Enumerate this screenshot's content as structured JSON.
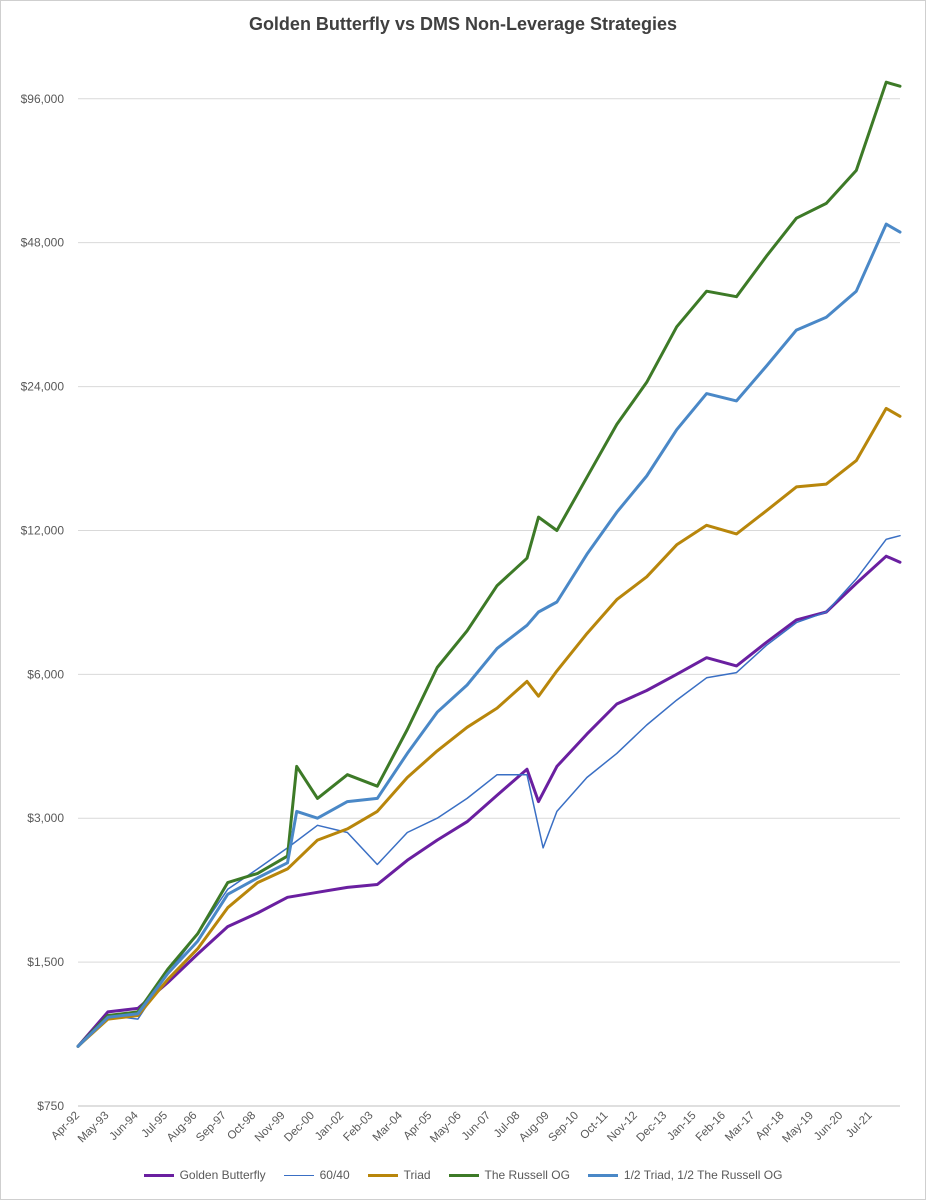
{
  "chart_data": {
    "type": "line",
    "title": "Golden Butterfly vs  DMS Non-Leverage Strategies",
    "xlabel": "",
    "ylabel": "",
    "y_scale": "log2",
    "ylim": [
      750,
      125000
    ],
    "y_ticks": [
      750,
      1500,
      3000,
      6000,
      12000,
      24000,
      48000,
      96000
    ],
    "y_tick_labels": [
      "$750",
      "$1,500",
      "$3,000",
      "$6,000",
      "$12,000",
      "$24,000",
      "$48,000",
      "$96,000"
    ],
    "x_range": [
      "1992-04",
      "2022-01"
    ],
    "x_tick_labels": [
      "Apr-92",
      "May-93",
      "Jun-94",
      "Jul-95",
      "Aug-96",
      "Sep-97",
      "Oct-98",
      "Nov-99",
      "Dec-00",
      "Jan-02",
      "Feb-03",
      "Mar-04",
      "Apr-05",
      "May-06",
      "Jun-07",
      "Jul-08",
      "Aug-09",
      "Sep-10",
      "Oct-11",
      "Nov-12",
      "Dec-13",
      "Jan-15",
      "Feb-16",
      "Mar-17",
      "Apr-18",
      "May-19",
      "Jun-20",
      "Jul-21"
    ],
    "grid": "horizontal",
    "legend_position": "bottom",
    "series": [
      {
        "name": "Golden Butterfly",
        "color": "#6a1fa0",
        "width": 3,
        "points": [
          [
            "1992-04",
            1000
          ],
          [
            "1993-05",
            1180
          ],
          [
            "1994-06",
            1200
          ],
          [
            "1995-07",
            1360
          ],
          [
            "1996-08",
            1560
          ],
          [
            "1997-09",
            1780
          ],
          [
            "1998-10",
            1900
          ],
          [
            "1999-11",
            2050
          ],
          [
            "2000-12",
            2100
          ],
          [
            "2002-01",
            2150
          ],
          [
            "2003-02",
            2180
          ],
          [
            "2004-03",
            2450
          ],
          [
            "2005-04",
            2700
          ],
          [
            "2006-05",
            2950
          ],
          [
            "2007-06",
            3350
          ],
          [
            "2008-07",
            3800
          ],
          [
            "2008-12",
            3250
          ],
          [
            "2009-08",
            3850
          ],
          [
            "2010-09",
            4500
          ],
          [
            "2011-10",
            5200
          ],
          [
            "2012-11",
            5550
          ],
          [
            "2013-12",
            6000
          ],
          [
            "2015-01",
            6500
          ],
          [
            "2016-02",
            6250
          ],
          [
            "2017-03",
            7000
          ],
          [
            "2018-04",
            7800
          ],
          [
            "2019-05",
            8100
          ],
          [
            "2020-06",
            9300
          ],
          [
            "2021-07",
            10600
          ],
          [
            "2022-01",
            10300
          ]
        ]
      },
      {
        "name": "60/40",
        "color": "#3a6fc4",
        "width": 1.5,
        "points": [
          [
            "1992-04",
            1000
          ],
          [
            "1993-05",
            1160
          ],
          [
            "1994-06",
            1140
          ],
          [
            "1995-07",
            1420
          ],
          [
            "1996-08",
            1720
          ],
          [
            "1997-09",
            2130
          ],
          [
            "1998-10",
            2350
          ],
          [
            "1999-11",
            2600
          ],
          [
            "2000-12",
            2900
          ],
          [
            "2002-01",
            2800
          ],
          [
            "2003-02",
            2400
          ],
          [
            "2004-03",
            2800
          ],
          [
            "2005-04",
            3000
          ],
          [
            "2006-05",
            3300
          ],
          [
            "2007-06",
            3700
          ],
          [
            "2008-07",
            3700
          ],
          [
            "2009-02",
            2600
          ],
          [
            "2009-08",
            3100
          ],
          [
            "2010-09",
            3650
          ],
          [
            "2011-10",
            4100
          ],
          [
            "2012-11",
            4700
          ],
          [
            "2013-12",
            5300
          ],
          [
            "2015-01",
            5900
          ],
          [
            "2016-02",
            6050
          ],
          [
            "2017-03",
            6900
          ],
          [
            "2018-04",
            7700
          ],
          [
            "2019-05",
            8100
          ],
          [
            "2020-06",
            9500
          ],
          [
            "2021-07",
            11500
          ],
          [
            "2022-01",
            11700
          ]
        ]
      },
      {
        "name": "Triad",
        "color": "#b8860b",
        "width": 3,
        "points": [
          [
            "1992-04",
            1000
          ],
          [
            "1993-05",
            1140
          ],
          [
            "1994-06",
            1160
          ],
          [
            "1995-07",
            1380
          ],
          [
            "1996-08",
            1600
          ],
          [
            "1997-09",
            1950
          ],
          [
            "1998-10",
            2200
          ],
          [
            "1999-11",
            2350
          ],
          [
            "2000-12",
            2700
          ],
          [
            "2002-01",
            2850
          ],
          [
            "2003-02",
            3100
          ],
          [
            "2004-03",
            3650
          ],
          [
            "2005-04",
            4150
          ],
          [
            "2006-05",
            4650
          ],
          [
            "2007-06",
            5100
          ],
          [
            "2008-07",
            5800
          ],
          [
            "2008-12",
            5400
          ],
          [
            "2009-08",
            6100
          ],
          [
            "2010-09",
            7300
          ],
          [
            "2011-10",
            8600
          ],
          [
            "2012-11",
            9600
          ],
          [
            "2013-12",
            11200
          ],
          [
            "2015-01",
            12300
          ],
          [
            "2016-02",
            11800
          ],
          [
            "2017-03",
            13200
          ],
          [
            "2018-04",
            14800
          ],
          [
            "2019-05",
            15000
          ],
          [
            "2020-06",
            16800
          ],
          [
            "2021-07",
            21600
          ],
          [
            "2022-01",
            20800
          ]
        ]
      },
      {
        "name": "The Russell OG",
        "color": "#3d7a27",
        "width": 3,
        "points": [
          [
            "1992-04",
            1000
          ],
          [
            "1993-05",
            1160
          ],
          [
            "1994-06",
            1180
          ],
          [
            "1995-07",
            1450
          ],
          [
            "1996-08",
            1720
          ],
          [
            "1997-09",
            2200
          ],
          [
            "1998-10",
            2300
          ],
          [
            "1999-11",
            2500
          ],
          [
            "2000-03",
            3850
          ],
          [
            "2000-12",
            3300
          ],
          [
            "2002-01",
            3700
          ],
          [
            "2003-02",
            3500
          ],
          [
            "2004-03",
            4600
          ],
          [
            "2005-04",
            6200
          ],
          [
            "2006-05",
            7400
          ],
          [
            "2007-06",
            9200
          ],
          [
            "2008-07",
            10500
          ],
          [
            "2008-12",
            12800
          ],
          [
            "2009-08",
            12000
          ],
          [
            "2010-09",
            15500
          ],
          [
            "2011-10",
            20000
          ],
          [
            "2012-11",
            24500
          ],
          [
            "2013-12",
            32000
          ],
          [
            "2015-01",
            38000
          ],
          [
            "2016-02",
            37000
          ],
          [
            "2017-03",
            45000
          ],
          [
            "2018-04",
            54000
          ],
          [
            "2019-05",
            58000
          ],
          [
            "2020-06",
            68000
          ],
          [
            "2021-07",
            104000
          ],
          [
            "2022-01",
            102000
          ]
        ]
      },
      {
        "name": "1/2 Triad, 1/2 The Russell OG",
        "color": "#4a88c7",
        "width": 3,
        "points": [
          [
            "1992-04",
            1000
          ],
          [
            "1993-05",
            1150
          ],
          [
            "1994-06",
            1170
          ],
          [
            "1995-07",
            1420
          ],
          [
            "1996-08",
            1660
          ],
          [
            "1997-09",
            2080
          ],
          [
            "1998-10",
            2250
          ],
          [
            "1999-11",
            2420
          ],
          [
            "2000-03",
            3100
          ],
          [
            "2000-12",
            3000
          ],
          [
            "2002-01",
            3250
          ],
          [
            "2003-02",
            3300
          ],
          [
            "2004-03",
            4100
          ],
          [
            "2005-04",
            5000
          ],
          [
            "2006-05",
            5700
          ],
          [
            "2007-06",
            6800
          ],
          [
            "2008-07",
            7600
          ],
          [
            "2008-12",
            8100
          ],
          [
            "2009-08",
            8500
          ],
          [
            "2010-09",
            10700
          ],
          [
            "2011-10",
            13100
          ],
          [
            "2012-11",
            15600
          ],
          [
            "2013-12",
            19500
          ],
          [
            "2015-01",
            23200
          ],
          [
            "2016-02",
            22400
          ],
          [
            "2017-03",
            26500
          ],
          [
            "2018-04",
            31500
          ],
          [
            "2019-05",
            33500
          ],
          [
            "2020-06",
            38000
          ],
          [
            "2021-07",
            52500
          ],
          [
            "2022-01",
            50500
          ]
        ]
      }
    ]
  }
}
